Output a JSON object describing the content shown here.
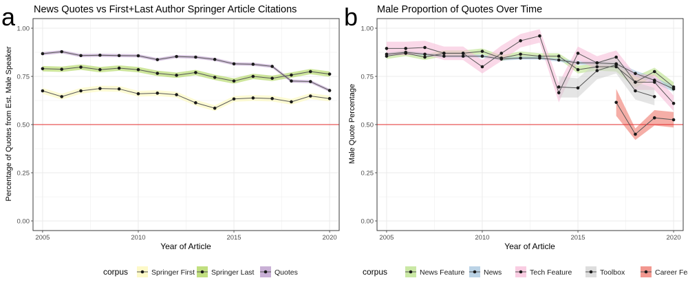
{
  "colors": {
    "springer_first": "#fcf7b1",
    "springer_last": "#a6d24a",
    "quotes": "#b28fc5",
    "news_feature": "#b4de7f",
    "news": "#9ec0db",
    "tech_feature": "#f6b8d6",
    "toolbox": "#cfcfcf",
    "career_feature": "#ec6b5f",
    "reference_line": "#e32b2b",
    "grid": "#ebebeb",
    "line": "#555555",
    "point": "#1a1a1a"
  },
  "chart_data": [
    {
      "panel_letter": "a",
      "type": "line",
      "title": "News Quotes vs First+Last Author Springer Article Citations",
      "xlabel": "Year of Article",
      "ylabel": "Percentage of Quotes from Est. Male Speaker",
      "xlim": [
        2004.5,
        2020.5
      ],
      "ylim": [
        -0.05,
        1.05
      ],
      "xticks": [
        2005,
        2010,
        2015,
        2020
      ],
      "xtick_labels": [
        "2005",
        "2010",
        "2015",
        "2020"
      ],
      "yticks": [
        0,
        0.25,
        0.5,
        0.75,
        1
      ],
      "ytick_labels": [
        "0.00",
        "0.25",
        "0.50",
        "0.75",
        "1.00"
      ],
      "hline": 0.5,
      "grid": true,
      "legend_title": "corpus",
      "legend_position": "bottom",
      "series": [
        {
          "name": "Springer First",
          "color_key": "springer_first",
          "x": [
            2005,
            2006,
            2007,
            2008,
            2009,
            2010,
            2011,
            2012,
            2013,
            2014,
            2015,
            2016,
            2017,
            2018,
            2019,
            2020
          ],
          "y": [
            0.675,
            0.645,
            0.675,
            0.687,
            0.685,
            0.66,
            0.663,
            0.655,
            0.613,
            0.585,
            0.633,
            0.638,
            0.635,
            0.618,
            0.648,
            0.635
          ],
          "lower": [
            0.66,
            0.63,
            0.66,
            0.672,
            0.67,
            0.645,
            0.648,
            0.64,
            0.598,
            0.57,
            0.618,
            0.623,
            0.62,
            0.603,
            0.633,
            0.62
          ],
          "upper": [
            0.69,
            0.66,
            0.69,
            0.702,
            0.7,
            0.675,
            0.678,
            0.67,
            0.628,
            0.6,
            0.648,
            0.653,
            0.65,
            0.633,
            0.663,
            0.65
          ]
        },
        {
          "name": "Springer Last",
          "color_key": "springer_last",
          "x": [
            2005,
            2006,
            2007,
            2008,
            2009,
            2010,
            2011,
            2012,
            2013,
            2014,
            2015,
            2016,
            2017,
            2018,
            2019,
            2020
          ],
          "y": [
            0.79,
            0.787,
            0.798,
            0.785,
            0.793,
            0.785,
            0.766,
            0.756,
            0.77,
            0.745,
            0.726,
            0.75,
            0.74,
            0.757,
            0.775,
            0.762
          ],
          "lower": [
            0.776,
            0.773,
            0.784,
            0.771,
            0.779,
            0.771,
            0.752,
            0.742,
            0.756,
            0.731,
            0.712,
            0.736,
            0.726,
            0.743,
            0.761,
            0.748
          ],
          "upper": [
            0.804,
            0.801,
            0.812,
            0.799,
            0.807,
            0.799,
            0.78,
            0.77,
            0.784,
            0.759,
            0.74,
            0.764,
            0.754,
            0.771,
            0.789,
            0.776
          ]
        },
        {
          "name": "Quotes",
          "color_key": "quotes",
          "x": [
            2005,
            2006,
            2007,
            2008,
            2009,
            2010,
            2011,
            2012,
            2013,
            2014,
            2015,
            2016,
            2017,
            2018,
            2019,
            2020
          ],
          "y": [
            0.868,
            0.878,
            0.858,
            0.86,
            0.858,
            0.857,
            0.837,
            0.853,
            0.85,
            0.838,
            0.815,
            0.813,
            0.802,
            0.726,
            0.723,
            0.677
          ],
          "lower": [
            0.86,
            0.87,
            0.85,
            0.852,
            0.85,
            0.849,
            0.829,
            0.845,
            0.842,
            0.83,
            0.807,
            0.805,
            0.794,
            0.718,
            0.715,
            0.669
          ],
          "upper": [
            0.876,
            0.886,
            0.866,
            0.868,
            0.866,
            0.865,
            0.845,
            0.861,
            0.858,
            0.846,
            0.823,
            0.821,
            0.81,
            0.734,
            0.731,
            0.685
          ]
        }
      ]
    },
    {
      "panel_letter": "b",
      "type": "line",
      "title": "Male Proportion of Quotes Over Time",
      "xlabel": "Year of Article",
      "ylabel": "Male Quote Percentage",
      "xlim": [
        2004.5,
        2020.5
      ],
      "ylim": [
        -0.05,
        1.05
      ],
      "xticks": [
        2005,
        2010,
        2015,
        2020
      ],
      "xtick_labels": [
        "2005",
        "2010",
        "2015",
        "2020"
      ],
      "yticks": [
        0,
        0.25,
        0.5,
        0.75,
        1
      ],
      "ytick_labels": [
        "0.00",
        "0.25",
        "0.50",
        "0.75",
        "1.00"
      ],
      "hline": 0.5,
      "grid": true,
      "legend_title": "corpus",
      "legend_position": "bottom",
      "series": [
        {
          "name": "News Feature",
          "color_key": "news_feature",
          "x": [
            2005,
            2006,
            2007,
            2008,
            2009,
            2010,
            2011,
            2012,
            2013,
            2014,
            2015,
            2016,
            2017,
            2018,
            2019,
            2020
          ],
          "y": [
            0.855,
            0.87,
            0.85,
            0.87,
            0.87,
            0.88,
            0.845,
            0.865,
            0.855,
            0.855,
            0.785,
            0.8,
            0.8,
            0.72,
            0.775,
            0.695
          ],
          "lower": [
            0.84,
            0.855,
            0.835,
            0.855,
            0.855,
            0.865,
            0.83,
            0.85,
            0.84,
            0.84,
            0.765,
            0.78,
            0.775,
            0.69,
            0.755,
            0.67
          ],
          "upper": [
            0.87,
            0.885,
            0.865,
            0.885,
            0.885,
            0.895,
            0.86,
            0.88,
            0.87,
            0.87,
            0.805,
            0.82,
            0.825,
            0.75,
            0.795,
            0.72
          ]
        },
        {
          "name": "News",
          "color_key": "news",
          "x": [
            2005,
            2006,
            2007,
            2008,
            2009,
            2010,
            2011,
            2012,
            2013,
            2014,
            2015,
            2016,
            2017,
            2018,
            2019,
            2020
          ],
          "y": [
            0.865,
            0.875,
            0.865,
            0.855,
            0.855,
            0.855,
            0.84,
            0.845,
            0.845,
            0.835,
            0.82,
            0.82,
            0.815,
            0.765,
            0.73,
            0.685
          ],
          "lower": [
            0.857,
            0.867,
            0.857,
            0.847,
            0.847,
            0.847,
            0.832,
            0.837,
            0.837,
            0.827,
            0.81,
            0.81,
            0.805,
            0.75,
            0.715,
            0.67
          ],
          "upper": [
            0.873,
            0.883,
            0.873,
            0.863,
            0.863,
            0.863,
            0.848,
            0.853,
            0.853,
            0.843,
            0.83,
            0.83,
            0.825,
            0.78,
            0.745,
            0.7
          ]
        },
        {
          "name": "Tech Feature",
          "color_key": "tech_feature",
          "x": [
            2005,
            2006,
            2007,
            2008,
            2009,
            2010,
            2011,
            2012,
            2013,
            2014,
            2015,
            2016,
            2017,
            2018,
            2019,
            2020
          ],
          "y": [
            0.895,
            0.895,
            0.9,
            0.87,
            0.87,
            0.8,
            0.87,
            0.935,
            0.96,
            0.665,
            0.87,
            0.82,
            0.85,
            0.72,
            0.72,
            0.61
          ],
          "lower": [
            0.86,
            0.86,
            0.865,
            0.835,
            0.835,
            0.765,
            0.83,
            0.9,
            0.925,
            0.615,
            0.835,
            0.785,
            0.815,
            0.68,
            0.68,
            0.57
          ],
          "upper": [
            0.93,
            0.93,
            0.935,
            0.905,
            0.905,
            0.835,
            0.91,
            0.97,
            0.995,
            0.715,
            0.905,
            0.855,
            0.885,
            0.76,
            0.76,
            0.65
          ]
        },
        {
          "name": "Toolbox",
          "color_key": "toolbox",
          "x": [
            2014,
            2015,
            2016,
            2017,
            2018,
            2019
          ],
          "y": [
            0.695,
            0.69,
            0.78,
            0.81,
            0.675,
            0.645
          ],
          "lower": [
            0.64,
            0.64,
            0.735,
            0.765,
            0.63,
            0.6
          ],
          "upper": [
            0.75,
            0.74,
            0.825,
            0.855,
            0.72,
            0.69
          ]
        },
        {
          "name": "Career Feature",
          "color_key": "career_feature",
          "x": [
            2017,
            2018,
            2019,
            2020
          ],
          "y": [
            0.615,
            0.45,
            0.535,
            0.525
          ],
          "lower": [
            0.545,
            0.42,
            0.495,
            0.485
          ],
          "upper": [
            0.685,
            0.48,
            0.575,
            0.565
          ]
        }
      ]
    }
  ]
}
